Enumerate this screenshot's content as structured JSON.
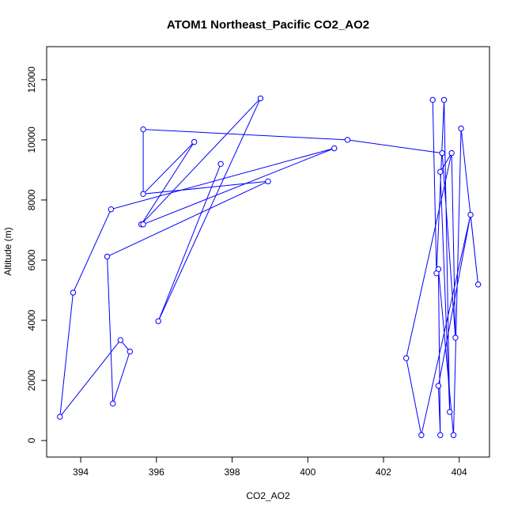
{
  "chart_data": {
    "type": "line",
    "title": "ATOM1 Northeast_Pacific CO2_AO2",
    "xlabel": "CO2_AO2",
    "ylabel": "Altitude (m)",
    "xlim": [
      393.1,
      404.8
    ],
    "ylim": [
      -550,
      13100
    ],
    "x_ticks": [
      394,
      396,
      398,
      400,
      402,
      404
    ],
    "y_ticks": [
      0,
      2000,
      4000,
      6000,
      8000,
      10000,
      12000
    ],
    "grid": false,
    "legend": "none",
    "colors": {
      "series": "#0000ff",
      "axis": "#000000"
    },
    "segments": [
      {
        "name": "",
        "points": [
          [
            396.05,
            3970
          ],
          [
            398.75,
            11380
          ],
          [
            395.6,
            7190
          ],
          [
            397.0,
            9930
          ],
          [
            395.65,
            8200
          ],
          [
            395.65,
            10350
          ],
          [
            401.05,
            10000
          ],
          [
            403.55,
            9560
          ]
        ]
      },
      {
        "name": "",
        "points": [
          [
            397.7,
            9200
          ],
          [
            396.05,
            3970
          ]
        ]
      },
      {
        "name": "",
        "points": [
          [
            398.95,
            8620
          ],
          [
            394.7,
            6120
          ],
          [
            394.85,
            1230
          ],
          [
            395.3,
            2960
          ],
          [
            395.05,
            3340
          ],
          [
            393.45,
            790
          ],
          [
            393.8,
            4920
          ],
          [
            394.8,
            7690
          ],
          [
            400.7,
            9720
          ],
          [
            395.65,
            7190
          ]
        ]
      },
      {
        "name": "",
        "points": [
          [
            395.65,
            8200
          ],
          [
            398.95,
            8620
          ]
        ]
      },
      {
        "name": "",
        "points": [
          [
            402.6,
            2740
          ],
          [
            403.0,
            180
          ],
          [
            404.3,
            7510
          ],
          [
            403.45,
            1820
          ],
          [
            403.5,
            180
          ],
          [
            403.45,
            5700
          ],
          [
            403.85,
            180
          ],
          [
            404.05,
            10380
          ],
          [
            404.5,
            5190
          ],
          [
            404.3,
            7510
          ]
        ]
      },
      {
        "name": "",
        "points": [
          [
            403.3,
            11330
          ],
          [
            403.4,
            5560
          ],
          [
            403.6,
            11330
          ],
          [
            403.75,
            950
          ],
          [
            403.5,
            8940
          ],
          [
            403.8,
            9560
          ],
          [
            403.9,
            3420
          ],
          [
            403.55,
            9560
          ]
        ]
      },
      {
        "name": "",
        "points": [
          [
            403.8,
            9560
          ],
          [
            402.6,
            2740
          ]
        ]
      }
    ]
  }
}
